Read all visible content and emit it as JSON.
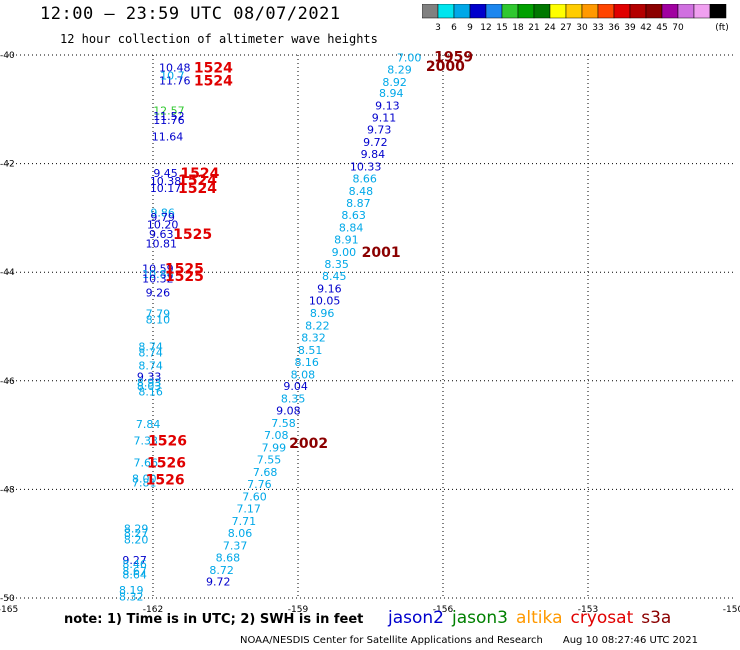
{
  "header": {
    "title": "12:00 — 23:59 UTC 08/07/2021",
    "subtitle": "12 hour collection of altimeter wave heights"
  },
  "colorbar": {
    "unit": "(ft)",
    "labels": [
      "3",
      "6",
      "9",
      "12",
      "15",
      "18",
      "21",
      "24",
      "27",
      "30",
      "33",
      "36",
      "39",
      "42",
      "45",
      "70"
    ],
    "colors": [
      "#808080",
      "#00e5ee",
      "#00a8e8",
      "#0000cc",
      "#1c86ee",
      "#30c830",
      "#00a000",
      "#007800",
      "#ffff00",
      "#ffcc00",
      "#ff9900",
      "#ff4500",
      "#e00000",
      "#b40000",
      "#8b0000",
      "#a000a0",
      "#d070e0",
      "#f0a0f0",
      "#000000"
    ]
  },
  "map": {
    "x_ticks": [
      "-165",
      "-162",
      "-159",
      "-156",
      "-153",
      "-150"
    ],
    "y_ticks": [
      "-40",
      "-42",
      "-44",
      "-46",
      "-48",
      "-50"
    ],
    "xlim": [
      -165,
      -150
    ],
    "ylim": [
      -50,
      -40
    ]
  },
  "observations": [
    {
      "lon": -161.55,
      "lat": -40.23,
      "text": "10.48",
      "color": "#0000cc"
    },
    {
      "lon": -161.55,
      "lat": -40.47,
      "text": "11.76",
      "color": "#0000cc"
    },
    {
      "lon": -161.6,
      "lat": -40.38,
      "text": "10.7",
      "color": "#00a8e8"
    },
    {
      "lon": -161.67,
      "lat": -41.02,
      "text": "12.57",
      "color": "#30c830"
    },
    {
      "lon": -161.67,
      "lat": -41.12,
      "text": "11.52",
      "color": "#0000cc"
    },
    {
      "lon": -161.67,
      "lat": -41.2,
      "text": "11.76",
      "color": "#0000cc"
    },
    {
      "lon": -161.7,
      "lat": -41.5,
      "text": "11.64",
      "color": "#0000cc"
    },
    {
      "lon": -161.74,
      "lat": -42.17,
      "text": "9.45",
      "color": "#0000cc"
    },
    {
      "lon": -161.74,
      "lat": -42.32,
      "text": "10.38",
      "color": "#0000cc"
    },
    {
      "lon": -161.74,
      "lat": -42.45,
      "text": "10.17",
      "color": "#0000cc"
    },
    {
      "lon": -161.8,
      "lat": -42.9,
      "text": "9.86",
      "color": "#00a8e8"
    },
    {
      "lon": -161.8,
      "lat": -42.98,
      "text": "9.79",
      "color": "#0000cc"
    },
    {
      "lon": -161.8,
      "lat": -43.12,
      "text": "10.20",
      "color": "#0000cc"
    },
    {
      "lon": -161.83,
      "lat": -43.3,
      "text": "9.63",
      "color": "#0000cc"
    },
    {
      "lon": -161.83,
      "lat": -43.47,
      "text": "10.81",
      "color": "#0000cc"
    },
    {
      "lon": -161.9,
      "lat": -43.93,
      "text": "10.59",
      "color": "#0000cc"
    },
    {
      "lon": -161.9,
      "lat": -44.03,
      "text": "10.86",
      "color": "#00a8e8"
    },
    {
      "lon": -161.9,
      "lat": -44.12,
      "text": "10.32",
      "color": "#0000cc"
    },
    {
      "lon": -161.9,
      "lat": -44.37,
      "text": "9.26",
      "color": "#0000cc"
    },
    {
      "lon": -161.9,
      "lat": -44.76,
      "text": "7.79",
      "color": "#00a8e8"
    },
    {
      "lon": -161.9,
      "lat": -44.87,
      "text": "8.10",
      "color": "#00a8e8"
    },
    {
      "lon": -162.05,
      "lat": -45.37,
      "text": "8.74",
      "color": "#00a8e8"
    },
    {
      "lon": -162.05,
      "lat": -45.48,
      "text": "8.74",
      "color": "#00a8e8"
    },
    {
      "lon": -162.05,
      "lat": -45.72,
      "text": "8.74",
      "color": "#00a8e8"
    },
    {
      "lon": -162.08,
      "lat": -45.92,
      "text": "9.33",
      "color": "#0000cc"
    },
    {
      "lon": -162.08,
      "lat": -46.03,
      "text": "8.93",
      "color": "#00a8e8"
    },
    {
      "lon": -162.08,
      "lat": -46.1,
      "text": "8.03",
      "color": "#00a8e8"
    },
    {
      "lon": -162.05,
      "lat": -46.2,
      "text": "8.16",
      "color": "#00a8e8"
    },
    {
      "lon": -162.1,
      "lat": -46.8,
      "text": "7.84",
      "color": "#00a8e8"
    },
    {
      "lon": -162.15,
      "lat": -47.1,
      "text": "7.33",
      "color": "#00a8e8"
    },
    {
      "lon": -162.15,
      "lat": -47.5,
      "text": "7.66",
      "color": "#00a8e8"
    },
    {
      "lon": -162.18,
      "lat": -47.8,
      "text": "8.00",
      "color": "#00a8e8"
    },
    {
      "lon": -162.18,
      "lat": -47.87,
      "text": "7.81",
      "color": "#00a8e8"
    },
    {
      "lon": -162.35,
      "lat": -48.72,
      "text": "8.29",
      "color": "#00a8e8"
    },
    {
      "lon": -162.35,
      "lat": -48.8,
      "text": "8.27",
      "color": "#00a8e8"
    },
    {
      "lon": -162.35,
      "lat": -48.92,
      "text": "8.20",
      "color": "#00a8e8"
    },
    {
      "lon": -162.38,
      "lat": -49.3,
      "text": "9.27",
      "color": "#0000cc"
    },
    {
      "lon": -162.38,
      "lat": -49.37,
      "text": "8.46",
      "color": "#00a8e8"
    },
    {
      "lon": -162.38,
      "lat": -49.5,
      "text": "8.67",
      "color": "#00a8e8"
    },
    {
      "lon": -162.38,
      "lat": -49.57,
      "text": "8.64",
      "color": "#00a8e8"
    },
    {
      "lon": -162.45,
      "lat": -49.85,
      "text": "8.19",
      "color": "#00a8e8"
    },
    {
      "lon": -162.45,
      "lat": -49.97,
      "text": "8.32",
      "color": "#00a8e8"
    },
    {
      "lon": -156.7,
      "lat": -40.05,
      "text": "7.00",
      "color": "#00a8e8"
    },
    {
      "lon": -156.9,
      "lat": -40.27,
      "text": "8.29",
      "color": "#00a8e8"
    },
    {
      "lon": -157.0,
      "lat": -40.5,
      "text": "8.92",
      "color": "#00a8e8"
    },
    {
      "lon": -157.07,
      "lat": -40.7,
      "text": "8.94",
      "color": "#00a8e8"
    },
    {
      "lon": -157.15,
      "lat": -40.93,
      "text": "9.13",
      "color": "#0000cc"
    },
    {
      "lon": -157.22,
      "lat": -41.15,
      "text": "9.11",
      "color": "#0000cc"
    },
    {
      "lon": -157.32,
      "lat": -41.37,
      "text": "9.73",
      "color": "#0000cc"
    },
    {
      "lon": -157.4,
      "lat": -41.6,
      "text": "9.72",
      "color": "#0000cc"
    },
    {
      "lon": -157.45,
      "lat": -41.82,
      "text": "9.84",
      "color": "#0000cc"
    },
    {
      "lon": -157.6,
      "lat": -42.05,
      "text": "10.33",
      "color": "#0000cc"
    },
    {
      "lon": -157.62,
      "lat": -42.27,
      "text": "8.66",
      "color": "#00a8e8"
    },
    {
      "lon": -157.7,
      "lat": -42.5,
      "text": "8.48",
      "color": "#00a8e8"
    },
    {
      "lon": -157.75,
      "lat": -42.73,
      "text": "8.87",
      "color": "#00a8e8"
    },
    {
      "lon": -157.85,
      "lat": -42.95,
      "text": "8.63",
      "color": "#00a8e8"
    },
    {
      "lon": -157.9,
      "lat": -43.18,
      "text": "8.84",
      "color": "#00a8e8"
    },
    {
      "lon": -158.0,
      "lat": -43.4,
      "text": "8.91",
      "color": "#00a8e8"
    },
    {
      "lon": -158.05,
      "lat": -43.63,
      "text": "9.00",
      "color": "#00a8e8"
    },
    {
      "lon": -158.2,
      "lat": -43.85,
      "text": "8.35",
      "color": "#00a8e8"
    },
    {
      "lon": -158.25,
      "lat": -44.07,
      "text": "8.45",
      "color": "#00a8e8"
    },
    {
      "lon": -158.35,
      "lat": -44.3,
      "text": "9.16",
      "color": "#0000cc"
    },
    {
      "lon": -158.45,
      "lat": -44.52,
      "text": "10.05",
      "color": "#0000cc"
    },
    {
      "lon": -158.5,
      "lat": -44.75,
      "text": "8.96",
      "color": "#00a8e8"
    },
    {
      "lon": -158.6,
      "lat": -44.98,
      "text": "8.22",
      "color": "#00a8e8"
    },
    {
      "lon": -158.68,
      "lat": -45.2,
      "text": "8.32",
      "color": "#00a8e8"
    },
    {
      "lon": -158.75,
      "lat": -45.43,
      "text": "8.51",
      "color": "#00a8e8"
    },
    {
      "lon": -158.82,
      "lat": -45.65,
      "text": "8.16",
      "color": "#00a8e8"
    },
    {
      "lon": -158.9,
      "lat": -45.88,
      "text": "8.08",
      "color": "#00a8e8"
    },
    {
      "lon": -159.05,
      "lat": -46.1,
      "text": "9.04",
      "color": "#0000cc"
    },
    {
      "lon": -159.1,
      "lat": -46.33,
      "text": "8.35",
      "color": "#00a8e8"
    },
    {
      "lon": -159.2,
      "lat": -46.55,
      "text": "9.08",
      "color": "#0000cc"
    },
    {
      "lon": -159.3,
      "lat": -46.78,
      "text": "7.58",
      "color": "#00a8e8"
    },
    {
      "lon": -159.45,
      "lat": -47.0,
      "text": "7.08",
      "color": "#00a8e8"
    },
    {
      "lon": -159.5,
      "lat": -47.23,
      "text": "7.99",
      "color": "#00a8e8"
    },
    {
      "lon": -159.6,
      "lat": -47.45,
      "text": "7.55",
      "color": "#00a8e8"
    },
    {
      "lon": -159.68,
      "lat": -47.68,
      "text": "7.68",
      "color": "#00a8e8"
    },
    {
      "lon": -159.8,
      "lat": -47.9,
      "text": "7.76",
      "color": "#00a8e8"
    },
    {
      "lon": -159.9,
      "lat": -48.13,
      "text": "7.60",
      "color": "#00a8e8"
    },
    {
      "lon": -160.02,
      "lat": -48.35,
      "text": "7.17",
      "color": "#00a8e8"
    },
    {
      "lon": -160.12,
      "lat": -48.58,
      "text": "7.71",
      "color": "#00a8e8"
    },
    {
      "lon": -160.2,
      "lat": -48.8,
      "text": "8.06",
      "color": "#00a8e8"
    },
    {
      "lon": -160.3,
      "lat": -49.03,
      "text": "7.37",
      "color": "#00a8e8"
    },
    {
      "lon": -160.45,
      "lat": -49.25,
      "text": "8.68",
      "color": "#00a8e8"
    },
    {
      "lon": -160.58,
      "lat": -49.48,
      "text": "8.72",
      "color": "#00a8e8"
    },
    {
      "lon": -160.65,
      "lat": -49.7,
      "text": "9.72",
      "color": "#0000cc"
    }
  ],
  "pass_times": [
    {
      "lon": -160.75,
      "lat": -40.23,
      "text": "1524",
      "color": "#e00000"
    },
    {
      "lon": -160.75,
      "lat": -40.47,
      "text": "1524",
      "color": "#e00000"
    },
    {
      "lon": -161.03,
      "lat": -42.17,
      "text": "1524",
      "color": "#e00000"
    },
    {
      "lon": -161.08,
      "lat": -42.3,
      "text": "1524",
      "color": "#e00000"
    },
    {
      "lon": -161.08,
      "lat": -42.45,
      "text": "1524",
      "color": "#e00000"
    },
    {
      "lon": -161.18,
      "lat": -43.3,
      "text": "1525",
      "color": "#e00000"
    },
    {
      "lon": -161.35,
      "lat": -43.93,
      "text": "1525",
      "color": "#e00000"
    },
    {
      "lon": -161.35,
      "lat": -44.07,
      "text": "1525",
      "color": "#e00000"
    },
    {
      "lon": -161.7,
      "lat": -47.1,
      "text": "1526",
      "color": "#e00000"
    },
    {
      "lon": -161.72,
      "lat": -47.5,
      "text": "1526",
      "color": "#e00000"
    },
    {
      "lon": -161.75,
      "lat": -47.82,
      "text": "1526",
      "color": "#e00000"
    },
    {
      "lon": -155.78,
      "lat": -40.03,
      "text": "1959",
      "color": "#8b0000"
    },
    {
      "lon": -155.95,
      "lat": -40.2,
      "text": "2000",
      "color": "#8b0000"
    },
    {
      "lon": -157.28,
      "lat": -43.63,
      "text": "2001",
      "color": "#8b0000"
    },
    {
      "lon": -158.78,
      "lat": -47.15,
      "text": "2002",
      "color": "#8b0000"
    }
  ],
  "footer": {
    "note": "note: 1) Time is in UTC; 2) SWH is in feet",
    "missions": [
      {
        "label": "jason2",
        "color": "#0000cc"
      },
      {
        "label": "jason3",
        "color": "#008000"
      },
      {
        "label": "altika",
        "color": "#ff9900"
      },
      {
        "label": "cryosat",
        "color": "#e00000"
      },
      {
        "label": "s3a",
        "color": "#8b0000"
      }
    ],
    "credit": "NOAA/NESDIS Center for Satellite Applications and Research",
    "timestamp": "Aug 10 08:27:46 UTC 2021"
  }
}
